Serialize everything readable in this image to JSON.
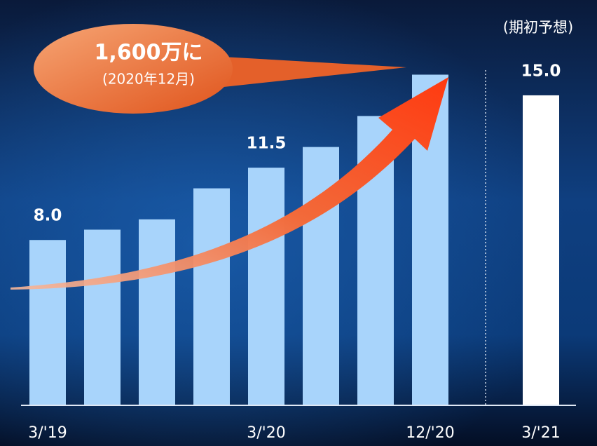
{
  "chart_data": {
    "type": "bar",
    "categories": [
      "3/'19",
      null,
      null,
      null,
      "3/'20",
      null,
      null,
      "12/'20",
      "3/'21"
    ],
    "values": [
      8.0,
      8.5,
      9.0,
      10.5,
      11.5,
      12.5,
      14.0,
      16.0,
      15.0
    ],
    "value_labels": [
      "8.0",
      null,
      null,
      null,
      "11.5",
      null,
      null,
      null,
      "15.0"
    ],
    "colors": [
      "#a8d4fb",
      "#a8d4fb",
      "#a8d4fb",
      "#a8d4fb",
      "#a8d4fb",
      "#a8d4fb",
      "#a8d4fb",
      "#a8d4fb",
      "#ffffff"
    ],
    "ylim": [
      0,
      17
    ],
    "annotations": {
      "callout": "1,600万に",
      "callout_sub": "(2020年12月)",
      "forecast_note": "(期初予想)"
    }
  }
}
